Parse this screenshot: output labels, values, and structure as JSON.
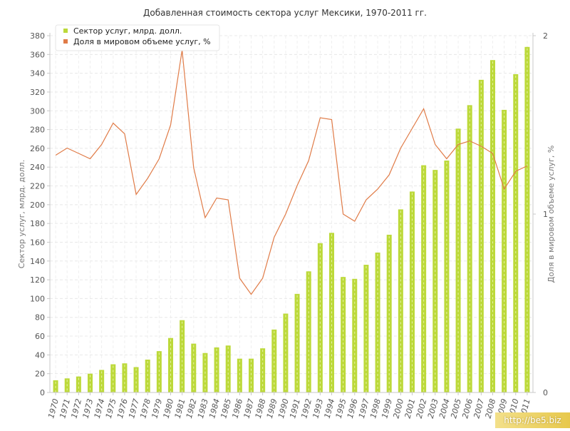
{
  "chart_data": {
    "type": "bar",
    "title": "Добавленная стоимость сектора услуг Мексики, 1970-2011 гг.",
    "categories": [
      "1970",
      "1971",
      "1972",
      "1973",
      "1974",
      "1975",
      "1976",
      "1977",
      "1978",
      "1979",
      "1980",
      "1981",
      "1982",
      "1983",
      "1984",
      "1985",
      "1986",
      "1987",
      "1988",
      "1989",
      "1990",
      "1991",
      "1992",
      "1993",
      "1994",
      "1995",
      "1996",
      "1997",
      "1998",
      "1999",
      "2000",
      "2001",
      "2002",
      "2003",
      "2004",
      "2005",
      "2006",
      "2007",
      "2008",
      "2009",
      "2010",
      "2011"
    ],
    "series": [
      {
        "name": "Сектор услуг, млрд. долл.",
        "type": "bar",
        "axis": "left",
        "color": "#bcd93a",
        "values": [
          13,
          15,
          17,
          20,
          24,
          30,
          31,
          27,
          35,
          44,
          58,
          77,
          52,
          42,
          48,
          50,
          36,
          36,
          47,
          67,
          84,
          105,
          129,
          159,
          170,
          123,
          121,
          136,
          149,
          168,
          195,
          214,
          242,
          237,
          247,
          281,
          306,
          333,
          354,
          301,
          339,
          368
        ]
      },
      {
        "name": "Доля в мировом объеме услуг, %",
        "type": "line",
        "axis": "right",
        "color": "#e07b47",
        "values": [
          1.33,
          1.37,
          1.34,
          1.31,
          1.39,
          1.51,
          1.45,
          1.11,
          1.2,
          1.31,
          1.5,
          1.92,
          1.26,
          0.98,
          1.09,
          1.08,
          0.64,
          0.55,
          0.64,
          0.87,
          1.0,
          1.16,
          1.3,
          1.54,
          1.53,
          1.0,
          0.96,
          1.08,
          1.14,
          1.22,
          1.37,
          1.48,
          1.59,
          1.39,
          1.31,
          1.39,
          1.41,
          1.38,
          1.34,
          1.14,
          1.24,
          1.27
        ]
      }
    ],
    "ylabel": "Сектор услуг, млрд. долл.",
    "y2label": "Доля в мировом объеме услуг, %",
    "ylim": [
      0,
      380
    ],
    "yticks": [
      "0",
      "20",
      "40",
      "60",
      "80",
      "100",
      "120",
      "140",
      "160",
      "180",
      "200",
      "220",
      "240",
      "260",
      "280",
      "300",
      "320",
      "340",
      "360",
      "380"
    ],
    "y2lim": [
      0,
      2
    ],
    "y2ticks": [
      "0",
      "1",
      "2"
    ],
    "grid": true,
    "legend_position": "top-left"
  },
  "watermark": "http://be5.biz"
}
